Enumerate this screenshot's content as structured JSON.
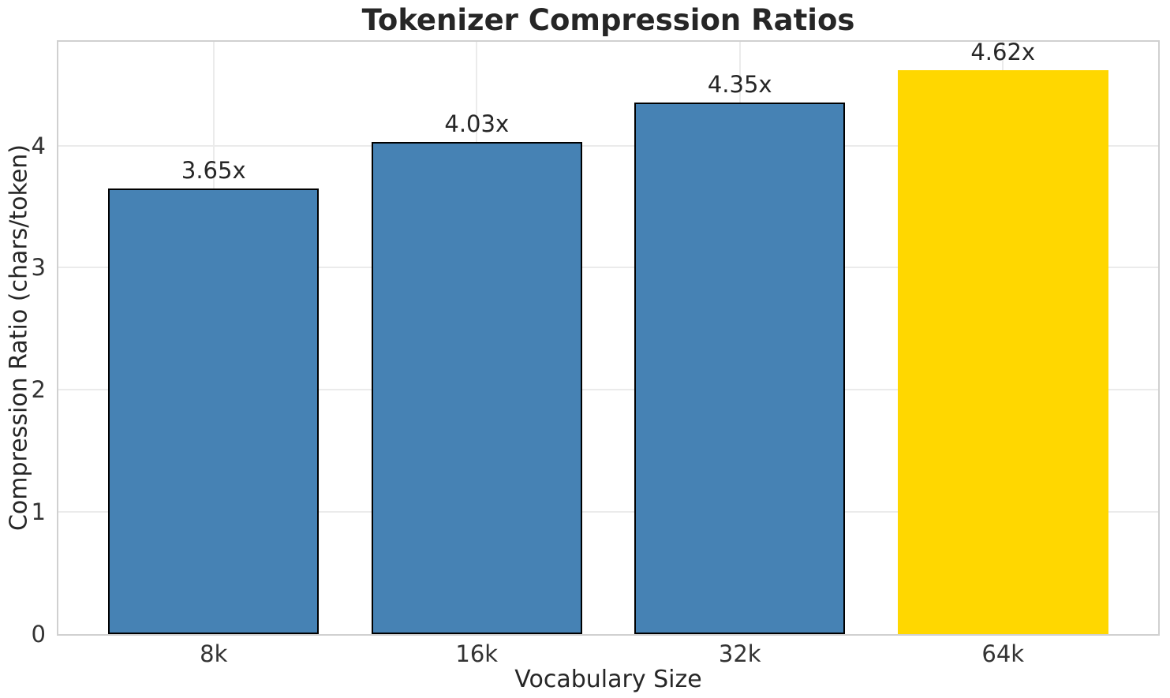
{
  "chart_data": {
    "type": "bar",
    "title": "Tokenizer Compression Ratios",
    "xlabel": "Vocabulary Size",
    "ylabel": "Compression Ratio (chars/token)",
    "categories": [
      "8k",
      "16k",
      "32k",
      "64k"
    ],
    "values": [
      3.65,
      4.03,
      4.35,
      4.62
    ],
    "bar_labels": [
      "3.65x",
      "4.03x",
      "4.35x",
      "4.62x"
    ],
    "bar_colors": [
      "#4682B4",
      "#4682B4",
      "#4682B4",
      "#FFD700"
    ],
    "bar_edge_colors": [
      "#000000",
      "#000000",
      "#000000",
      "none"
    ],
    "highlight_index": 3,
    "yticks": [
      0,
      1,
      2,
      3,
      4
    ],
    "ylim": [
      0,
      4.85
    ],
    "xlim": [
      -0.59,
      3.59
    ],
    "bar_width_units": 0.8,
    "grid": true,
    "legend": "none",
    "colors": {
      "bar": "#4682B4",
      "highlight": "#FFD700",
      "bar_edge": "#000000",
      "grid": "#ebebeb",
      "spine": "#d0d0d0",
      "title_text": "#262626",
      "tick_text": "#333333"
    }
  }
}
